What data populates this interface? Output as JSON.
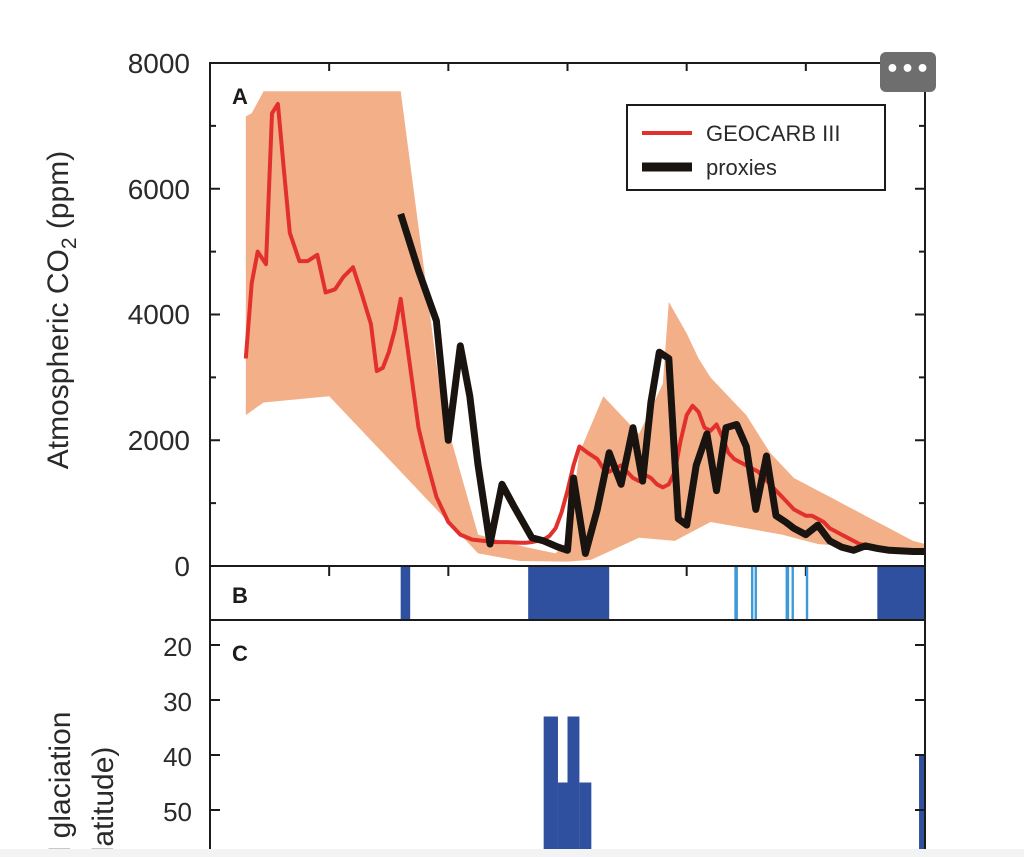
{
  "toolbar": {
    "more_label": "•••"
  },
  "colors": {
    "envelope": "#f3b088",
    "geocarb": "#e2312d",
    "proxies": "#1a1410",
    "glaciation_dark": "#2f4f9f",
    "glaciation_light": "#3d9ad8",
    "axis": "#1b1b1b",
    "text": "#2a2a2a"
  },
  "chart_data": [
    {
      "panel": "A",
      "type": "line",
      "ylabel_main": "Atmospheric CO",
      "ylabel_sub": "2",
      "ylabel_unit": " (ppm)",
      "yticks": [
        "8000",
        "6000",
        "4000",
        "2000",
        "0"
      ],
      "ylim": [
        0,
        8000
      ],
      "xlim": [
        600,
        0
      ],
      "xlabel": "",
      "legend": {
        "position": "top-right",
        "entries": [
          "GEOCARB III",
          "proxies"
        ]
      },
      "series": [
        {
          "name": "GEOCARB III",
          "x": [
            570,
            565,
            560,
            553,
            548,
            543,
            538,
            533,
            525,
            518,
            510,
            503,
            495,
            488,
            480,
            473,
            465,
            460,
            455,
            450,
            445,
            440,
            433,
            425,
            420,
            410,
            400,
            390,
            380,
            370,
            360,
            350,
            340,
            335,
            330,
            325,
            320,
            315,
            310,
            305,
            300,
            295,
            290,
            283,
            275,
            270,
            265,
            260,
            255,
            250,
            245,
            240,
            235,
            230,
            225,
            220,
            215,
            210,
            205,
            200,
            195,
            190,
            185,
            180,
            175,
            170,
            165,
            160,
            155,
            150,
            145,
            140,
            135,
            130,
            125,
            120,
            115,
            110,
            105,
            100,
            95,
            90,
            85,
            80,
            75,
            70,
            65,
            60,
            55,
            50,
            45,
            40,
            35,
            30,
            25,
            20,
            15,
            10,
            5,
            0
          ],
          "y": [
            3300,
            4500,
            5000,
            4800,
            7200,
            7350,
            6300,
            5300,
            4850,
            4850,
            4950,
            4350,
            4400,
            4600,
            4750,
            4350,
            3850,
            3100,
            3150,
            3400,
            3750,
            4250,
            3300,
            2200,
            1800,
            1100,
            700,
            500,
            420,
            400,
            380,
            380,
            370,
            370,
            380,
            400,
            420,
            480,
            600,
            850,
            1200,
            1600,
            1900,
            1800,
            1700,
            1550,
            1500,
            1550,
            1600,
            1500,
            1400,
            1350,
            1450,
            1400,
            1300,
            1250,
            1300,
            1500,
            2000,
            2400,
            2550,
            2450,
            2200,
            2150,
            2250,
            2050,
            1800,
            1700,
            1650,
            1600,
            1550,
            1500,
            1400,
            1300,
            1200,
            1100,
            1000,
            900,
            850,
            800,
            800,
            750,
            700,
            600,
            550,
            500,
            450,
            400,
            350,
            330,
            300,
            300,
            280,
            270,
            260,
            250,
            240,
            230,
            220,
            210
          ]
        },
        {
          "name": "proxies",
          "x": [
            440,
            425,
            410,
            400,
            390,
            382,
            375,
            365,
            355,
            345,
            330,
            320,
            308,
            300,
            295,
            285,
            275,
            265,
            255,
            245,
            237,
            230,
            223,
            215,
            207,
            200,
            192,
            183,
            175,
            167,
            158,
            150,
            142,
            133,
            125,
            117,
            110,
            100,
            90,
            80,
            70,
            60,
            50,
            40,
            30,
            20,
            10,
            0
          ],
          "y": [
            5600,
            4700,
            3900,
            2000,
            3500,
            2700,
            1600,
            350,
            1300,
            950,
            450,
            400,
            300,
            250,
            1400,
            200,
            900,
            1800,
            1300,
            2200,
            1350,
            2600,
            3400,
            3300,
            750,
            650,
            1600,
            2100,
            1200,
            2200,
            2250,
            1900,
            900,
            1750,
            800,
            700,
            600,
            500,
            650,
            400,
            300,
            250,
            320,
            280,
            250,
            240,
            230,
            230
          ]
        }
      ],
      "envelope_upper": {
        "x": [
          570,
          565,
          555,
          440,
          405,
          375,
          335,
          310,
          300,
          290,
          270,
          240,
          220,
          215,
          200,
          190,
          180,
          170,
          160,
          150,
          140,
          130,
          120,
          110,
          100,
          90,
          80,
          70,
          60,
          50,
          40,
          30,
          20,
          10,
          0
        ],
        "y": [
          7150,
          7200,
          7550,
          7550,
          2500,
          500,
          300,
          200,
          400,
          1800,
          2700,
          2100,
          2900,
          4200,
          3700,
          3300,
          3000,
          2800,
          2600,
          2400,
          2100,
          1800,
          1600,
          1400,
          1300,
          1200,
          1100,
          1000,
          900,
          800,
          700,
          600,
          500,
          400,
          350
        ]
      },
      "envelope_lower": {
        "x": [
          570,
          555,
          500,
          375,
          340,
          300,
          280,
          240,
          210,
          180,
          150,
          120,
          90,
          60,
          30,
          10,
          0
        ],
        "y": [
          2400,
          2600,
          2700,
          200,
          80,
          70,
          100,
          450,
          400,
          700,
          600,
          500,
          350,
          300,
          280,
          200,
          180
        ]
      }
    },
    {
      "panel": "B",
      "type": "bar",
      "description_label": "B",
      "bands_dark": [
        [
          440,
          432
        ],
        [
          333,
          265
        ],
        [
          40,
          0
        ]
      ],
      "bands_light": [
        [
          160,
          157
        ],
        [
          146,
          144
        ],
        [
          143,
          141
        ],
        [
          117,
          114
        ],
        [
          112,
          110
        ],
        [
          100,
          98
        ]
      ]
    },
    {
      "panel": "C",
      "type": "bar",
      "ylabel_line1": "al glaciation",
      "ylabel_line2": "olatitude)",
      "yticks": [
        "20",
        "30",
        "40",
        "50"
      ],
      "ylim": [
        16,
        56
      ],
      "bars": [
        {
          "x0": 320,
          "x1": 308,
          "y": 33
        },
        {
          "x0": 308,
          "x1": 300,
          "y": 45
        },
        {
          "x0": 300,
          "x1": 290,
          "y": 33
        },
        {
          "x0": 290,
          "x1": 280,
          "y": 45
        },
        {
          "x0": 5,
          "x1": 0,
          "y": 40
        }
      ]
    }
  ]
}
